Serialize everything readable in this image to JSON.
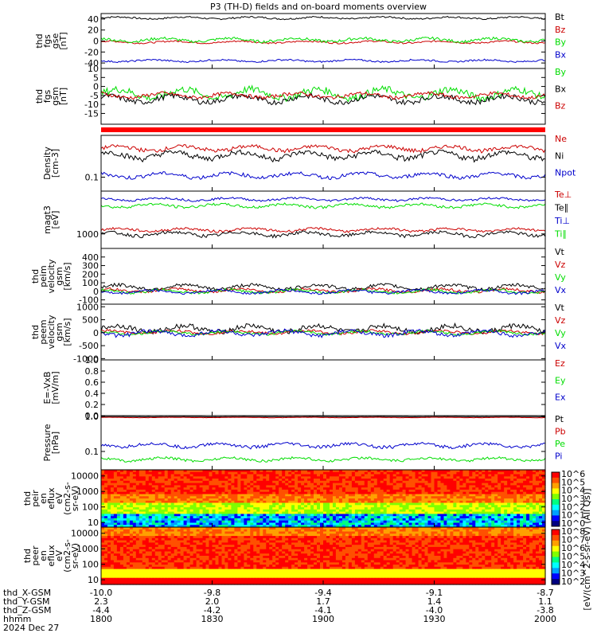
{
  "chart_data": {
    "title": "P3 (TH-D) fields and on-board moments overview",
    "panels": [
      {
        "id": "fgs_gse",
        "type": "line",
        "ylabel": [
          "thd",
          "fgs",
          "gse",
          "[nT]"
        ],
        "ylim": [
          -50,
          50
        ],
        "scale": "linear",
        "yticks": [
          {
            "v": 40,
            "l": "40"
          },
          {
            "v": 20,
            "l": "20"
          },
          {
            "v": 0,
            "l": "0"
          },
          {
            "v": -20,
            "l": "-20"
          },
          {
            "v": -40,
            "l": "-40"
          }
        ],
        "series": [
          {
            "name": "Bt",
            "color": "#000000",
            "base": 42,
            "amp": 3
          },
          {
            "name": "Bz",
            "color": "#cc0000",
            "base": -2,
            "amp": 3
          },
          {
            "name": "By",
            "color": "#00dd00",
            "base": 2,
            "amp": 5
          },
          {
            "name": "Bx",
            "color": "#0000cc",
            "base": -36,
            "amp": 3
          }
        ]
      },
      {
        "id": "fgs_gsm",
        "type": "line",
        "ylabel": [
          "thd",
          "fgs",
          "gsm",
          "[nT]"
        ],
        "ylim": [
          -21,
          10
        ],
        "scale": "linear",
        "yticks": [
          {
            "v": 10,
            "l": "10"
          },
          {
            "v": 5,
            "l": "5"
          },
          {
            "v": 0,
            "l": "0"
          },
          {
            "v": -5,
            "l": "-5"
          },
          {
            "v": -10,
            "l": "-10"
          },
          {
            "v": -15,
            "l": "-15"
          }
        ],
        "series": [
          {
            "name": "By",
            "color": "#00dd00",
            "base": -4,
            "amp": 4
          },
          {
            "name": "Bx",
            "color": "#000000",
            "base": -7,
            "amp": 3
          },
          {
            "name": "Bz",
            "color": "#cc0000",
            "base": -5,
            "amp": 2
          }
        ]
      },
      {
        "id": "density",
        "type": "line",
        "ylabel": [
          "Density",
          "[cm-3]"
        ],
        "ylim": [
          0.05,
          0.8
        ],
        "scale": "log",
        "yticks": [
          {
            "v": 0.1,
            "l": "0.1"
          }
        ],
        "series": [
          {
            "name": "Ne",
            "color": "#cc0000",
            "base": 0.42,
            "amp": 0.08
          },
          {
            "name": "Ni",
            "color": "#000000",
            "base": 0.3,
            "amp": 0.08
          },
          {
            "name": "Npot",
            "color": "#0000cc",
            "base": 0.11,
            "amp": 0.02
          }
        ]
      },
      {
        "id": "temp",
        "type": "line",
        "ylabel": [
          "magt3",
          "[eV]"
        ],
        "ylim": [
          400,
          15000
        ],
        "scale": "log",
        "yticks": [
          {
            "v": 1000,
            "l": "1000"
          }
        ],
        "series": [
          {
            "name": "Te⊥",
            "color": "#cc0000",
            "base": 1300,
            "amp": 200
          },
          {
            "name": "Te∥",
            "color": "#000000",
            "base": 1000,
            "amp": 200
          },
          {
            "name": "Ti⊥",
            "color": "#0000cc",
            "base": 9000,
            "amp": 1200
          },
          {
            "name": "Ti∥",
            "color": "#00dd00",
            "base": 6000,
            "amp": 1000
          }
        ]
      },
      {
        "id": "peim_vel",
        "type": "line",
        "ylabel": [
          "thd",
          "peim",
          "velocity",
          "gsm",
          "[km/s]"
        ],
        "ylim": [
          -150,
          500
        ],
        "scale": "linear",
        "yticks": [
          {
            "v": 400,
            "l": "400"
          },
          {
            "v": 300,
            "l": "300"
          },
          {
            "v": 200,
            "l": "200"
          },
          {
            "v": 100,
            "l": "100"
          },
          {
            "v": 0,
            "l": "0"
          },
          {
            "v": -100,
            "l": "-100"
          }
        ],
        "series": [
          {
            "name": "Vt",
            "color": "#000000",
            "base": 50,
            "amp": 40
          },
          {
            "name": "Vz",
            "color": "#cc0000",
            "base": 10,
            "amp": 30
          },
          {
            "name": "Vy",
            "color": "#00dd00",
            "base": 0,
            "amp": 30
          },
          {
            "name": "Vx",
            "color": "#0000cc",
            "base": -5,
            "amp": 30
          }
        ]
      },
      {
        "id": "peem_vel",
        "type": "line",
        "ylabel": [
          "thd",
          "peem",
          "velocity",
          "gsm",
          "[km/s]"
        ],
        "ylim": [
          -1050,
          1100
        ],
        "scale": "linear",
        "yticks": [
          {
            "v": 1000,
            "l": "1000"
          },
          {
            "v": 500,
            "l": "500"
          },
          {
            "v": 0,
            "l": "0"
          },
          {
            "v": -500,
            "l": "-500"
          },
          {
            "v": -1000,
            "l": "-1000"
          }
        ],
        "series": [
          {
            "name": "Vt",
            "color": "#000000",
            "base": 150,
            "amp": 200
          },
          {
            "name": "Vz",
            "color": "#cc0000",
            "base": 20,
            "amp": 100
          },
          {
            "name": "Vy",
            "color": "#00dd00",
            "base": 0,
            "amp": 100
          },
          {
            "name": "Vx",
            "color": "#0000cc",
            "base": -20,
            "amp": 150
          }
        ]
      },
      {
        "id": "efield",
        "type": "line",
        "ylabel": [
          "E=-VxB",
          "[mV/m]"
        ],
        "ylim": [
          0,
          1
        ],
        "scale": "linear",
        "yticks": [
          {
            "v": 1.0,
            "l": "1.0"
          },
          {
            "v": 0.8,
            "l": "0.8"
          },
          {
            "v": 0.6,
            "l": "0.6"
          },
          {
            "v": 0.4,
            "l": "0.4"
          },
          {
            "v": 0.2,
            "l": "0.2"
          },
          {
            "v": 0.0,
            "l": "0.0"
          }
        ],
        "series": [
          {
            "name": "Ez",
            "color": "#cc0000",
            "base": null
          },
          {
            "name": "Ey",
            "color": "#00dd00",
            "base": null
          },
          {
            "name": "Ex",
            "color": "#0000cc",
            "base": null
          }
        ]
      },
      {
        "id": "pressure",
        "type": "line",
        "ylabel": [
          "Pressure",
          "[nPa]"
        ],
        "ylim": [
          0.03,
          1.05
        ],
        "scale": "log",
        "yticks": [
          {
            "v": 1.0,
            "l": "1.0"
          },
          {
            "v": 0.1,
            "l": "0.1"
          }
        ],
        "series": [
          {
            "name": "Pt",
            "color": "#000000",
            "base": 0.98,
            "amp": 0.01
          },
          {
            "name": "Pb",
            "color": "#cc0000",
            "base": 0.93,
            "amp": 0.02
          },
          {
            "name": "Pe",
            "color": "#00dd00",
            "base": 0.06,
            "amp": 0.01
          },
          {
            "name": "Pi",
            "color": "#0000cc",
            "base": 0.15,
            "amp": 0.03
          }
        ]
      },
      {
        "id": "peir",
        "type": "heatmap",
        "ylabel": [
          "thd",
          "peir",
          "en",
          "eflux",
          "eV",
          "(cm2-s-",
          "sr-eV)"
        ],
        "ylim": [
          5,
          25000
        ],
        "scale": "log",
        "yticks": [
          {
            "v": 10000,
            "l": "10000"
          },
          {
            "v": 1000,
            "l": "1000"
          },
          {
            "v": 100,
            "l": "100"
          },
          {
            "v": 10,
            "l": "10"
          }
        ]
      },
      {
        "id": "peer",
        "type": "heatmap",
        "ylabel": [
          "thd",
          "peer",
          "en",
          "eflux",
          "eV",
          "(cm2-s-",
          "sr-eV)"
        ],
        "ylim": [
          5,
          25000
        ],
        "scale": "log",
        "yticks": [
          {
            "v": 10000,
            "l": "10000"
          },
          {
            "v": 1000,
            "l": "1000"
          },
          {
            "v": 100,
            "l": "100"
          },
          {
            "v": 10,
            "l": "10"
          }
        ]
      }
    ],
    "colorbar": {
      "label": "[eV/(cm^2-s-sr-eV) (All Qs)]",
      "top_ticks": [
        "10^6",
        "10^5",
        "10^4",
        "10^3",
        "10^2",
        "10^1",
        "10^0"
      ],
      "bottom_ticks": [
        "10^8",
        "10^7",
        "10^6",
        "10^5",
        "10^4",
        "10^3",
        "10^2"
      ]
    },
    "x_axis": {
      "xlim": [
        0,
        120
      ],
      "ticks": [
        {
          "v": 0,
          "x": "-10.0",
          "y": "2.3",
          "z": "-4.4",
          "hhmm": "1800"
        },
        {
          "v": 30,
          "x": "-9.8",
          "y": "2.0",
          "z": "-4.2",
          "hhmm": "1830"
        },
        {
          "v": 60,
          "x": "-9.4",
          "y": "1.7",
          "z": "-4.1",
          "hhmm": "1900"
        },
        {
          "v": 90,
          "x": "-9.1",
          "y": "1.4",
          "z": "-4.0",
          "hhmm": "1930"
        },
        {
          "v": 120,
          "x": "-8.7",
          "y": "1.1",
          "z": "-3.8",
          "hhmm": "2000"
        }
      ],
      "row_labels": [
        "thd_X-GSM",
        "thd_Y-GSM",
        "thd_Z-GSM",
        "hhmm"
      ],
      "date": "2024 Dec 27"
    }
  }
}
